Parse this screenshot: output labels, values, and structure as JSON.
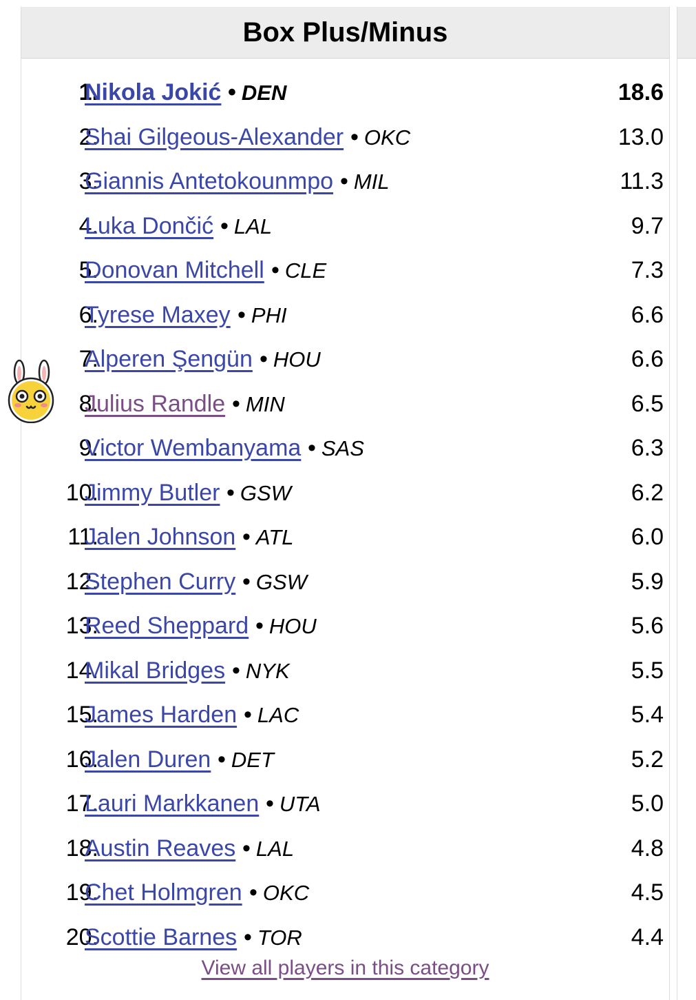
{
  "header": {
    "title": "Box Plus/Minus"
  },
  "players": [
    {
      "rank": "1.",
      "name": "Nikola Jokić",
      "team": "DEN",
      "value": "18.6"
    },
    {
      "rank": "2.",
      "name": "Shai Gilgeous-Alexander",
      "team": "OKC",
      "value": "13.0"
    },
    {
      "rank": "3.",
      "name": "Giannis Antetokounmpo",
      "team": "MIL",
      "value": "11.3"
    },
    {
      "rank": "4.",
      "name": "Luka Dončić",
      "team": "LAL",
      "value": "9.7"
    },
    {
      "rank": "5.",
      "name": "Donovan Mitchell",
      "team": "CLE",
      "value": "7.3"
    },
    {
      "rank": "6.",
      "name": "Tyrese Maxey",
      "team": "PHI",
      "value": "6.6"
    },
    {
      "rank": "7.",
      "name": "Alperen Şengün",
      "team": "HOU",
      "value": "6.6"
    },
    {
      "rank": "8.",
      "name": "Julius Randle",
      "team": "MIN",
      "value": "6.5"
    },
    {
      "rank": "9.",
      "name": "Victor Wembanyama",
      "team": "SAS",
      "value": "6.3"
    },
    {
      "rank": "10.",
      "name": "Jimmy Butler",
      "team": "GSW",
      "value": "6.2"
    },
    {
      "rank": "11.",
      "name": "Jalen Johnson",
      "team": "ATL",
      "value": "6.0"
    },
    {
      "rank": "12.",
      "name": "Stephen Curry",
      "team": "GSW",
      "value": "5.9"
    },
    {
      "rank": "13.",
      "name": "Reed Sheppard",
      "team": "HOU",
      "value": "5.6"
    },
    {
      "rank": "14.",
      "name": "Mikal Bridges",
      "team": "NYK",
      "value": "5.5"
    },
    {
      "rank": "15.",
      "name": "James Harden",
      "team": "LAC",
      "value": "5.4"
    },
    {
      "rank": "16.",
      "name": "Jalen Duren",
      "team": "DET",
      "value": "5.2"
    },
    {
      "rank": "17.",
      "name": "Lauri Markkanen",
      "team": "UTA",
      "value": "5.0"
    },
    {
      "rank": "18.",
      "name": "Austin Reaves",
      "team": "LAL",
      "value": "4.8"
    },
    {
      "rank": "19.",
      "name": "Chet Holmgren",
      "team": "OKC",
      "value": "4.5"
    },
    {
      "rank": "20.",
      "name": "Scottie Barnes",
      "team": "TOR",
      "value": "4.4"
    }
  ],
  "separator": "•",
  "footer": {
    "view_all_label": "View all players in this category"
  },
  "colors": {
    "link": "#3a47a8",
    "visited_link": "#7b4d86",
    "header_bg": "#ececec"
  },
  "sticker": {
    "icon": "bunny-face-icon"
  }
}
